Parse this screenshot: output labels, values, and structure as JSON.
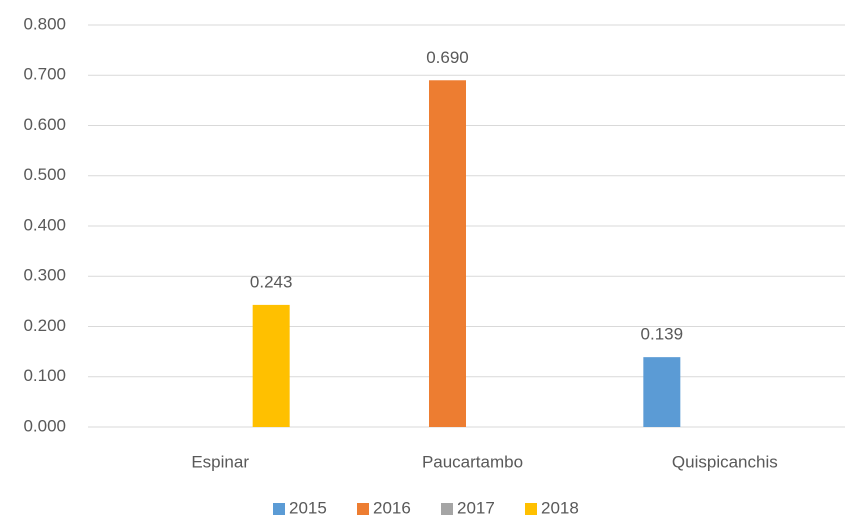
{
  "chart_data": {
    "type": "bar",
    "categories": [
      "Espinar",
      "Paucartambo",
      "Quispicanchis"
    ],
    "series": [
      {
        "name": "2015",
        "color": "#5b9bd5",
        "values": [
          null,
          null,
          0.139
        ],
        "value_labels": [
          null,
          null,
          "0.139"
        ]
      },
      {
        "name": "2016",
        "color": "#ed7d31",
        "values": [
          null,
          0.69,
          null
        ],
        "value_labels": [
          null,
          "0.690",
          null
        ]
      },
      {
        "name": "2017",
        "color": "#a5a5a5",
        "values": [
          null,
          null,
          null
        ],
        "value_labels": [
          null,
          null,
          null
        ]
      },
      {
        "name": "2018",
        "color": "#ffc000",
        "values": [
          0.243,
          null,
          null
        ],
        "value_labels": [
          "0.243",
          null,
          null
        ]
      }
    ],
    "ylim": [
      0,
      0.8
    ],
    "yticks": [
      {
        "value": 0,
        "label": "0.000"
      },
      {
        "value": 0.1,
        "label": "0.100"
      },
      {
        "value": 0.2,
        "label": "0.200"
      },
      {
        "value": 0.3,
        "label": "0.300"
      },
      {
        "value": 0.4,
        "label": "0.400"
      },
      {
        "value": 0.5,
        "label": "0.500"
      },
      {
        "value": 0.6,
        "label": "0.600"
      },
      {
        "value": 0.7,
        "label": "0.700"
      },
      {
        "value": 0.8,
        "label": "0.800"
      }
    ],
    "grid": true,
    "legend": "bottom"
  }
}
